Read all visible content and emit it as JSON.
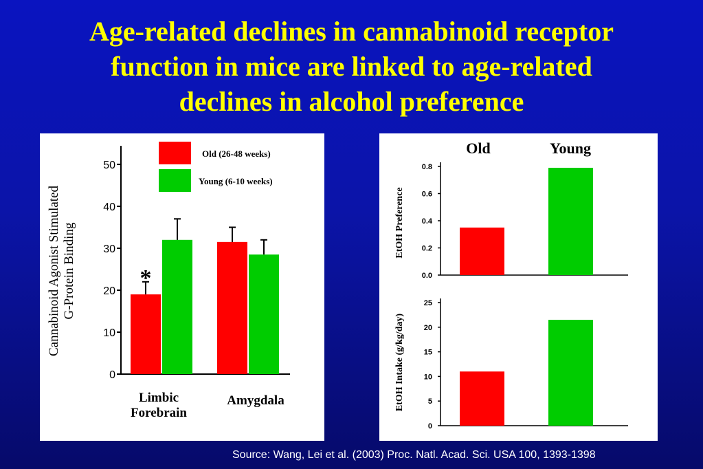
{
  "title_lines": [
    "Age-related declines in cannabinoid receptor",
    "function in mice are linked to age-related",
    "declines in alcohol preference"
  ],
  "source": "Source: Wang, Lei et al. (2003) Proc. Natl. Acad. Sci. USA 100, 1393-1398",
  "chart_data": [
    {
      "type": "bar",
      "categories": [
        "Limbic Forebrain",
        "Amygdala"
      ],
      "category_lines": [
        [
          "Limbic",
          "Forebrain"
        ],
        [
          "Amygdala"
        ]
      ],
      "series": [
        {
          "name": "Old (26-48 weeks)",
          "color": "#ff0000",
          "values": [
            19,
            31.5
          ],
          "error": [
            3,
            3.5
          ]
        },
        {
          "name": "Young (6-10  weeks)",
          "color": "#00cc00",
          "values": [
            32,
            28.5
          ],
          "error": [
            5,
            3.5
          ]
        }
      ],
      "ylabel_lines": [
        "Cannabinoid Agonist Stimulated",
        "G-Protein Binding"
      ],
      "ylim": [
        0,
        50
      ],
      "yticks": [
        "0",
        "10",
        "20",
        "30",
        "40",
        "50"
      ],
      "annotation": "*",
      "legend_position": "top"
    },
    {
      "type": "bar",
      "categories": [
        "Old",
        "Young"
      ],
      "colors": [
        "#ff0000",
        "#00cc00"
      ],
      "values": [
        0.35,
        0.79
      ],
      "ylabel": "EtOH Preference",
      "ylim": [
        0,
        0.8
      ],
      "yticks": [
        "0.0",
        "0.2",
        "0.4",
        "0.6",
        "0.8"
      ]
    },
    {
      "type": "bar",
      "categories": [
        "Old",
        "Young"
      ],
      "colors": [
        "#ff0000",
        "#00cc00"
      ],
      "values": [
        11,
        21.5
      ],
      "ylabel": "EtOH Intake (g/kg/day)",
      "ylim": [
        0,
        25
      ],
      "yticks": [
        "0",
        "5",
        "10",
        "15",
        "20",
        "25"
      ]
    }
  ]
}
